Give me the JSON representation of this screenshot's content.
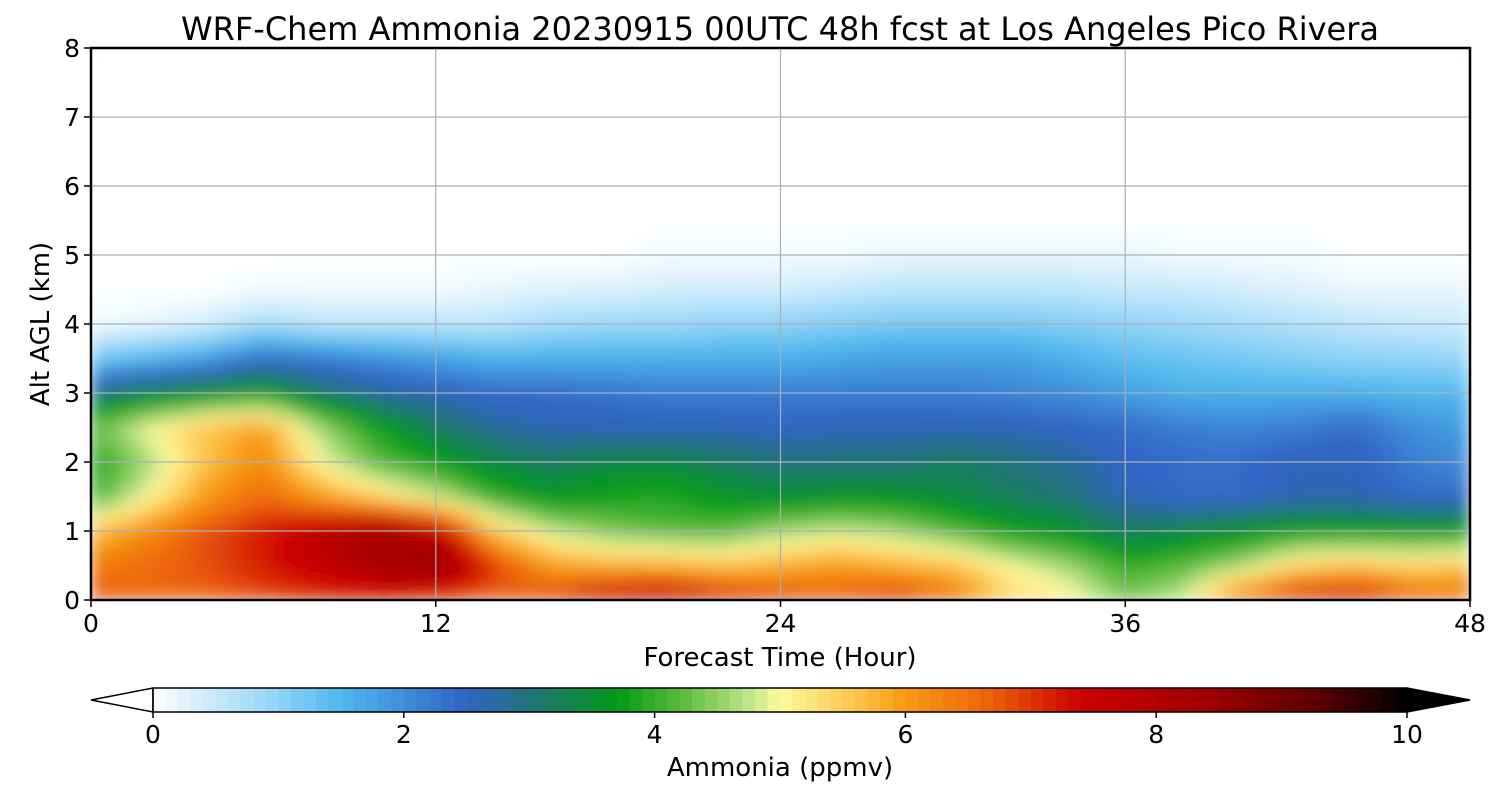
{
  "chart_data": {
    "type": "heatmap",
    "title": "WRF-Chem Ammonia  20230915 00UTC 48h fcst at Los Angeles Pico Rivera",
    "xlabel": "Forecast Time (Hour)",
    "ylabel": "Alt AGL (km)",
    "xlim": [
      0,
      48
    ],
    "ylim": [
      0,
      8
    ],
    "x_ticks": [
      "0",
      "12",
      "24",
      "36",
      "48"
    ],
    "y_ticks": [
      "0",
      "1",
      "2",
      "3",
      "4",
      "5",
      "6",
      "7",
      "8"
    ],
    "grid": true,
    "colorbar": {
      "label": "Ammonia  (ppmv)",
      "range": [
        0,
        10
      ],
      "ticks": [
        "0",
        "2",
        "4",
        "6",
        "8",
        "10"
      ],
      "extend": "both",
      "color_stops": [
        {
          "value": 0,
          "color": "#ffffff"
        },
        {
          "value": 1,
          "color": "#8fd3f7"
        },
        {
          "value": 1.5,
          "color": "#4fb8ee"
        },
        {
          "value": 2.5,
          "color": "#3163c5"
        },
        {
          "value": 3.0,
          "color": "#22737a"
        },
        {
          "value": 3.7,
          "color": "#009a18"
        },
        {
          "value": 4.2,
          "color": "#5ab93c"
        },
        {
          "value": 4.8,
          "color": "#c8e890"
        },
        {
          "value": 5.0,
          "color": "#fffa9e"
        },
        {
          "value": 5.6,
          "color": "#fcc44c"
        },
        {
          "value": 6.0,
          "color": "#f79a12"
        },
        {
          "value": 6.6,
          "color": "#ee6a0c"
        },
        {
          "value": 7.4,
          "color": "#cc0000"
        },
        {
          "value": 8.4,
          "color": "#a00000"
        },
        {
          "value": 9.3,
          "color": "#5a0000"
        },
        {
          "value": 10,
          "color": "#000000"
        }
      ]
    },
    "x": [
      0,
      2,
      4,
      6,
      8,
      10,
      12,
      14,
      16,
      18,
      20,
      22,
      24,
      26,
      28,
      30,
      32,
      34,
      36,
      38,
      40,
      42,
      44,
      46,
      48
    ],
    "y": [
      0,
      0.5,
      1,
      1.5,
      2,
      2.5,
      3,
      3.5,
      4,
      4.5,
      5,
      5.5,
      6,
      7,
      8
    ],
    "z": [
      [
        6.8,
        6.6,
        6.6,
        6.8,
        7.0,
        7.0,
        6.8,
        6.6,
        7.0,
        7.8,
        8.0,
        7.4,
        7.0,
        6.8,
        7.2,
        6.6,
        5.4,
        5.2,
        4.4,
        4.8,
        6.6,
        7.4,
        7.6,
        6.8,
        6.6
      ],
      [
        6.4,
        6.6,
        6.8,
        7.2,
        7.6,
        8.2,
        8.6,
        7.0,
        6.0,
        5.8,
        5.8,
        5.6,
        5.8,
        6.0,
        5.8,
        5.6,
        5.0,
        4.6,
        4.0,
        4.2,
        4.6,
        5.4,
        5.6,
        5.4,
        5.6
      ],
      [
        5.6,
        6.2,
        6.8,
        7.2,
        7.8,
        8.4,
        7.8,
        5.6,
        4.8,
        4.4,
        4.2,
        4.2,
        4.6,
        4.8,
        4.6,
        4.2,
        3.8,
        3.6,
        3.2,
        3.4,
        3.6,
        3.8,
        3.8,
        3.8,
        3.8
      ],
      [
        4.0,
        5.0,
        6.0,
        6.6,
        6.0,
        5.4,
        4.8,
        4.0,
        3.6,
        3.8,
        3.9,
        3.6,
        3.5,
        3.6,
        3.6,
        3.4,
        3.2,
        3.0,
        2.6,
        2.4,
        2.4,
        2.6,
        2.6,
        2.4,
        2.4
      ],
      [
        3.8,
        4.6,
        5.6,
        6.2,
        5.0,
        4.2,
        3.8,
        3.4,
        3.2,
        3.4,
        3.4,
        3.2,
        3.0,
        3.0,
        3.0,
        3.2,
        3.0,
        2.8,
        2.5,
        2.4,
        2.4,
        2.6,
        2.6,
        2.2,
        2.0
      ],
      [
        4.2,
        5.0,
        5.6,
        6.0,
        4.6,
        3.8,
        3.2,
        2.8,
        2.6,
        2.6,
        2.6,
        2.6,
        2.5,
        2.6,
        2.6,
        2.6,
        2.6,
        2.5,
        2.4,
        2.2,
        2.1,
        2.2,
        2.4,
        2.0,
        1.8
      ],
      [
        3.0,
        3.4,
        3.6,
        3.8,
        3.2,
        2.8,
        2.6,
        2.4,
        2.4,
        2.3,
        2.2,
        2.2,
        2.2,
        2.2,
        2.2,
        2.2,
        2.1,
        2.0,
        1.8,
        1.6,
        1.6,
        1.6,
        1.6,
        1.5,
        1.5
      ],
      [
        1.2,
        1.5,
        1.8,
        2.4,
        2.2,
        2.0,
        1.8,
        1.6,
        1.6,
        1.6,
        1.6,
        1.6,
        1.6,
        1.7,
        1.8,
        1.8,
        1.8,
        1.6,
        1.4,
        1.3,
        1.2,
        1.1,
        1.0,
        1.0,
        0.9
      ],
      [
        0.1,
        0.2,
        0.4,
        0.8,
        0.6,
        0.6,
        0.6,
        0.6,
        0.8,
        0.9,
        0.9,
        1.0,
        1.0,
        1.1,
        1.2,
        1.2,
        1.2,
        1.1,
        1.0,
        0.9,
        0.8,
        0.7,
        0.6,
        0.5,
        0.5
      ],
      [
        0.0,
        0.0,
        0.0,
        0.1,
        0.1,
        0.1,
        0.1,
        0.2,
        0.3,
        0.3,
        0.4,
        0.4,
        0.4,
        0.5,
        0.6,
        0.6,
        0.6,
        0.6,
        0.5,
        0.5,
        0.4,
        0.3,
        0.2,
        0.2,
        0.2
      ],
      [
        0.0,
        0.0,
        0.0,
        0.0,
        0.0,
        0.0,
        0.0,
        0.0,
        0.0,
        0.0,
        0.1,
        0.1,
        0.1,
        0.1,
        0.2,
        0.2,
        0.2,
        0.2,
        0.2,
        0.1,
        0.1,
        0.1,
        0.0,
        0.0,
        0.0
      ],
      [
        0.0,
        0.0,
        0.0,
        0.0,
        0.0,
        0.0,
        0.0,
        0.0,
        0.0,
        0.0,
        0.0,
        0.0,
        0.0,
        0.0,
        0.0,
        0.0,
        0.0,
        0.0,
        0.0,
        0.0,
        0.0,
        0.0,
        0.0,
        0.0,
        0.0
      ],
      [
        0.0,
        0.0,
        0.0,
        0.0,
        0.0,
        0.0,
        0.0,
        0.0,
        0.0,
        0.0,
        0.0,
        0.0,
        0.0,
        0.0,
        0.0,
        0.0,
        0.0,
        0.0,
        0.0,
        0.0,
        0.0,
        0.0,
        0.0,
        0.0,
        0.0
      ],
      [
        0.0,
        0.0,
        0.0,
        0.0,
        0.0,
        0.0,
        0.0,
        0.0,
        0.0,
        0.0,
        0.0,
        0.0,
        0.0,
        0.0,
        0.0,
        0.0,
        0.0,
        0.0,
        0.0,
        0.0,
        0.0,
        0.0,
        0.0,
        0.0,
        0.0
      ],
      [
        0.0,
        0.0,
        0.0,
        0.0,
        0.0,
        0.0,
        0.0,
        0.0,
        0.0,
        0.0,
        0.0,
        0.0,
        0.0,
        0.0,
        0.0,
        0.0,
        0.0,
        0.0,
        0.0,
        0.0,
        0.0,
        0.0,
        0.0,
        0.0,
        0.0
      ]
    ]
  }
}
